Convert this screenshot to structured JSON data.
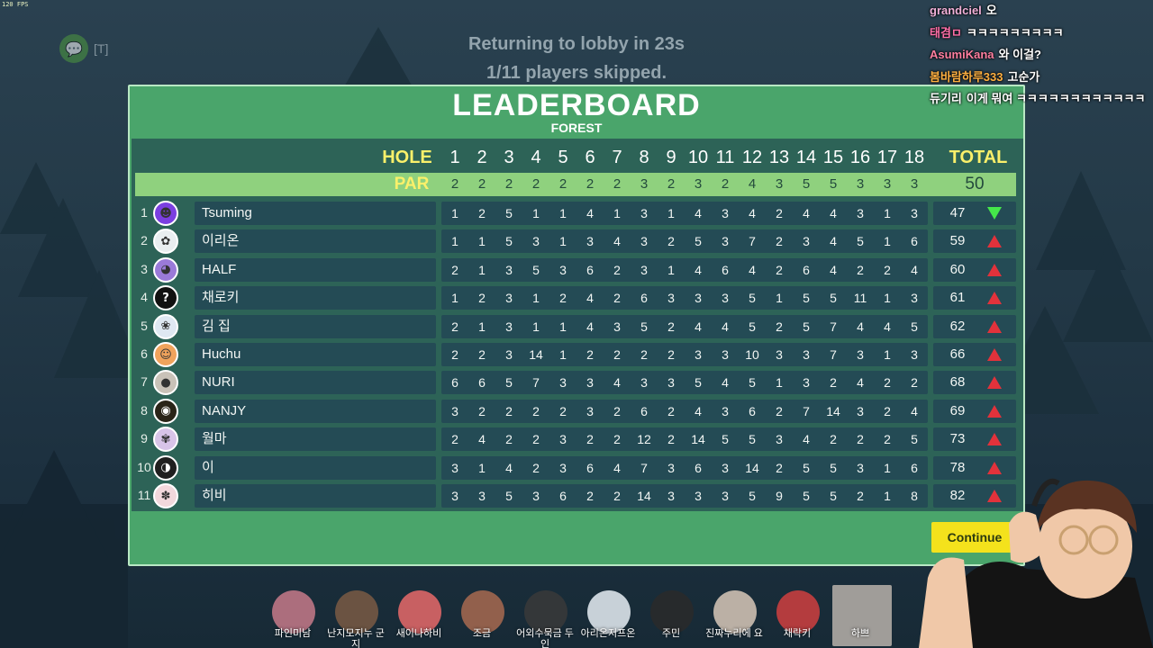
{
  "overlay": {
    "fps": "120 FPS",
    "voice_key": "[T]",
    "lobby_countdown": "Returning to lobby in 23s",
    "skip_status": "1/11 players skipped."
  },
  "leaderboard": {
    "title": "LEADERBOARD",
    "course": "FOREST",
    "hole_label": "HOLE",
    "par_label": "PAR",
    "total_label": "TOTAL",
    "holes": [
      "1",
      "2",
      "3",
      "4",
      "5",
      "6",
      "7",
      "8",
      "9",
      "10",
      "11",
      "12",
      "13",
      "14",
      "15",
      "16",
      "17",
      "18"
    ],
    "par": [
      "2",
      "2",
      "2",
      "2",
      "2",
      "2",
      "2",
      "3",
      "2",
      "3",
      "2",
      "4",
      "3",
      "5",
      "5",
      "3",
      "3",
      "3"
    ],
    "par_total": "50",
    "continue_label": "Continue",
    "players": [
      {
        "rank": "1",
        "name": "Tsuming",
        "avatar_color": "#7b3fe0",
        "avatar_glyph": "☻",
        "scores": [
          "1",
          "2",
          "5",
          "1",
          "1",
          "4",
          "1",
          "3",
          "1",
          "4",
          "3",
          "4",
          "2",
          "4",
          "4",
          "3",
          "1",
          "3"
        ],
        "total": "47",
        "trend": "down"
      },
      {
        "rank": "2",
        "name": "이리온",
        "avatar_color": "#e9eef0",
        "avatar_glyph": "✿",
        "scores": [
          "1",
          "1",
          "5",
          "3",
          "1",
          "3",
          "4",
          "3",
          "2",
          "5",
          "3",
          "7",
          "2",
          "3",
          "4",
          "5",
          "1",
          "6"
        ],
        "total": "59",
        "trend": "up"
      },
      {
        "rank": "3",
        "name": "HALF",
        "avatar_color": "#9a7ad8",
        "avatar_glyph": "◕",
        "scores": [
          "2",
          "1",
          "3",
          "5",
          "3",
          "6",
          "2",
          "3",
          "1",
          "4",
          "6",
          "4",
          "2",
          "6",
          "4",
          "2",
          "2",
          "4"
        ],
        "total": "60",
        "trend": "up"
      },
      {
        "rank": "4",
        "name": "채로키",
        "avatar_color": "#111111",
        "avatar_glyph": "?",
        "scores": [
          "1",
          "2",
          "3",
          "1",
          "2",
          "4",
          "2",
          "6",
          "3",
          "3",
          "3",
          "5",
          "1",
          "5",
          "5",
          "11",
          "1",
          "3"
        ],
        "total": "61",
        "trend": "up"
      },
      {
        "rank": "5",
        "name": "김 집",
        "avatar_color": "#dfe8f2",
        "avatar_glyph": "❀",
        "scores": [
          "2",
          "1",
          "3",
          "1",
          "1",
          "4",
          "3",
          "5",
          "2",
          "4",
          "4",
          "5",
          "2",
          "5",
          "7",
          "4",
          "4",
          "5"
        ],
        "total": "62",
        "trend": "up"
      },
      {
        "rank": "6",
        "name": "Huchu",
        "avatar_color": "#f0a35c",
        "avatar_glyph": "☺",
        "scores": [
          "2",
          "2",
          "3",
          "14",
          "1",
          "2",
          "2",
          "2",
          "2",
          "3",
          "3",
          "10",
          "3",
          "3",
          "7",
          "3",
          "1",
          "3"
        ],
        "total": "66",
        "trend": "up"
      },
      {
        "rank": "7",
        "name": "NURI",
        "avatar_color": "#c9c2b8",
        "avatar_glyph": "●",
        "scores": [
          "6",
          "6",
          "5",
          "7",
          "3",
          "3",
          "4",
          "3",
          "3",
          "5",
          "4",
          "5",
          "1",
          "3",
          "2",
          "4",
          "2",
          "2"
        ],
        "total": "68",
        "trend": "up"
      },
      {
        "rank": "8",
        "name": "NANJY",
        "avatar_color": "#2a2418",
        "avatar_glyph": "◉",
        "scores": [
          "3",
          "2",
          "2",
          "2",
          "2",
          "3",
          "2",
          "6",
          "2",
          "4",
          "3",
          "6",
          "2",
          "7",
          "14",
          "3",
          "2",
          "4"
        ],
        "total": "69",
        "trend": "up"
      },
      {
        "rank": "9",
        "name": "월마",
        "avatar_color": "#d8c4e8",
        "avatar_glyph": "✾",
        "scores": [
          "2",
          "4",
          "2",
          "2",
          "3",
          "2",
          "2",
          "12",
          "2",
          "14",
          "5",
          "5",
          "3",
          "4",
          "2",
          "2",
          "2",
          "5"
        ],
        "total": "73",
        "trend": "up"
      },
      {
        "rank": "10",
        "name": "이",
        "avatar_color": "#1f1f1f",
        "avatar_glyph": "◑",
        "scores": [
          "3",
          "1",
          "4",
          "2",
          "3",
          "6",
          "4",
          "7",
          "3",
          "6",
          "3",
          "14",
          "2",
          "5",
          "5",
          "3",
          "1",
          "6"
        ],
        "total": "78",
        "trend": "up"
      },
      {
        "rank": "11",
        "name": "히비",
        "avatar_color": "#f2d8dc",
        "avatar_glyph": "✽",
        "scores": [
          "3",
          "3",
          "5",
          "3",
          "6",
          "2",
          "2",
          "14",
          "3",
          "3",
          "3",
          "5",
          "9",
          "5",
          "5",
          "2",
          "1",
          "8"
        ],
        "total": "82",
        "trend": "up"
      }
    ]
  },
  "chat": [
    {
      "user": "grandciel",
      "color": "#f0b0d8",
      "message": "오"
    },
    {
      "user": "태겸ㅁ",
      "color": "#ff6fa8",
      "message": "ㅋㅋㅋㅋㅋㅋㅋㅋㅋ"
    },
    {
      "user": "AsumiKana",
      "color": "#ff7fa0",
      "message": "와 이걸?"
    },
    {
      "user": "봄바람하루333",
      "color": "#ffb040",
      "message": "고순가"
    },
    {
      "user": "듀기리",
      "color": "#ffffff",
      "message": "이게 뭐여 ㅋㅋㅋㅋㅋㅋㅋㅋㅋㅋㅋㅋ"
    }
  ],
  "friends": [
    {
      "name": "파인미남",
      "color": "#c77a8a"
    },
    {
      "name": "난지모지누 군지",
      "color": "#7a5a44"
    },
    {
      "name": "새이나하비",
      "color": "#e86a6a"
    },
    {
      "name": "조금",
      "color": "#a86a50"
    },
    {
      "name": "어외수묵금 두인",
      "color": "#3a3a3a"
    },
    {
      "name": "아리온저프온",
      "color": "#e8eef4"
    },
    {
      "name": "주민",
      "color": "#2a2a2a"
    },
    {
      "name": "진짜누리에 요",
      "color": "#d8c8b8"
    },
    {
      "name": "채락키",
      "color": "#d04040"
    },
    {
      "name": "하쁘",
      "color": "#b9b2aa"
    }
  ]
}
